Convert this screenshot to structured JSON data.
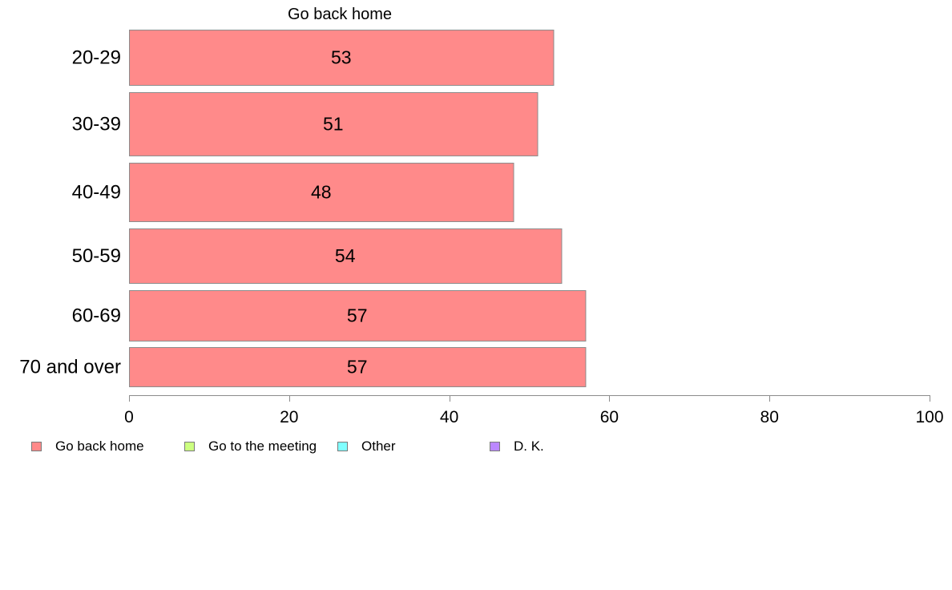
{
  "chart_data": {
    "type": "bar",
    "orientation": "horizontal",
    "stacked": true,
    "series_title": "Go back home",
    "categories": [
      "20-29",
      "30-39",
      "40-49",
      "50-59",
      "60-69",
      "70 and over"
    ],
    "series": [
      {
        "name": "Go back home",
        "values": [
          53,
          51,
          48,
          54,
          57,
          57
        ]
      }
    ],
    "data_labels": [
      "53",
      "51",
      "48",
      "54",
      "57",
      "57"
    ],
    "xlim": [
      0,
      100
    ],
    "xticks": [
      0,
      20,
      40,
      60,
      80,
      100
    ],
    "xtick_labels": [
      "0",
      "20",
      "40",
      "60",
      "80",
      "100"
    ],
    "grid": false,
    "legend_position": "bottom",
    "legend": [
      {
        "label": "Go back home",
        "color": "#ff8a8a"
      },
      {
        "label": "Go to the meeting",
        "color": "#ccff80"
      },
      {
        "label": "Other",
        "color": "#80ffff"
      },
      {
        "label": "D. K.",
        "color": "#bb88ff"
      }
    ],
    "colors": {
      "bar": "#ff8a8a",
      "bar_edge": "#8c8c8c",
      "axis": "#8c8c8c"
    }
  }
}
